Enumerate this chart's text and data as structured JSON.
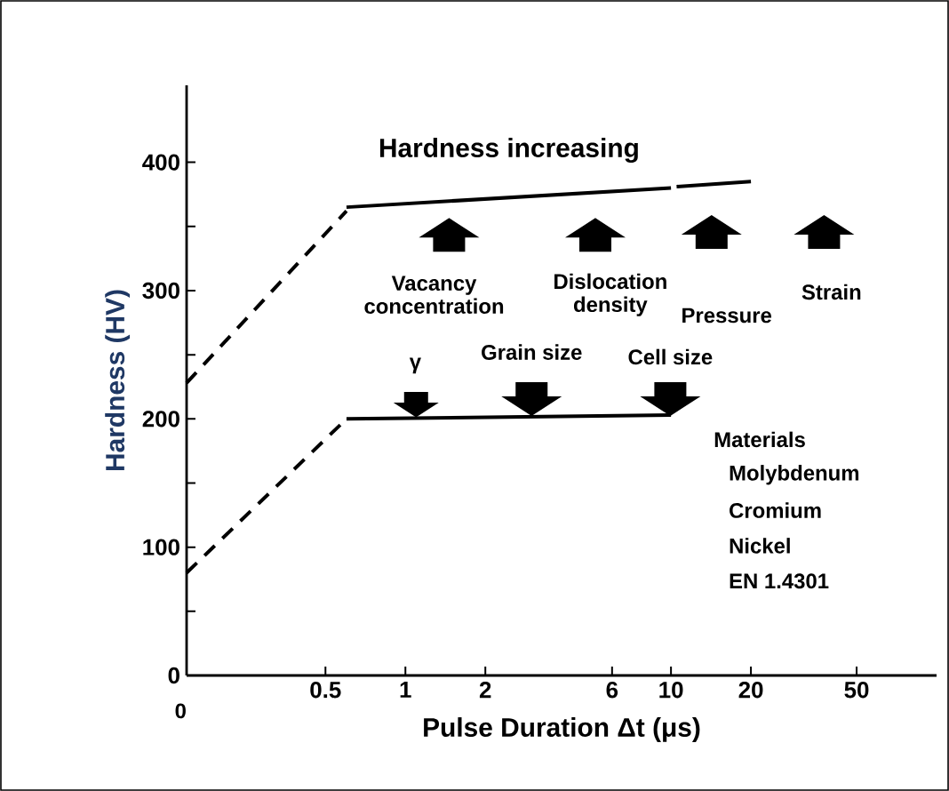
{
  "chart_data": {
    "type": "line",
    "title": "Hardness increasing",
    "xlabel": "Pulse Duration Δt (μs)",
    "ylabel": "Hardness (HV)",
    "log": "x",
    "xlim": [
      0.15,
      100
    ],
    "xticks": [
      0.5,
      1,
      2,
      6,
      10,
      20,
      50
    ],
    "ylim": [
      0,
      460
    ],
    "yticks": [
      0,
      {
        "value": 50,
        "label": null
      },
      100,
      {
        "value": 150,
        "label": null
      },
      200,
      {
        "value": 250,
        "label": null
      },
      300,
      {
        "value": 350,
        "label": null
      },
      400
    ],
    "annotations": [
      "Vacancy concentration",
      "Dislocation density",
      "Pressure",
      "Strain",
      "γ",
      "Grain size",
      "Cell size",
      "Materials",
      "Molybdenum",
      "Cromium",
      "Nickel",
      "EN 1.4301",
      "0"
    ],
    "marker": "none",
    "grid": false,
    "series": [
      {
        "x": [
          0.15,
          0.6
        ],
        "values": [
          228,
          362
        ],
        "color": "#000000",
        "line_style": "dashed"
      },
      {
        "x": [
          0.6,
          10
        ],
        "values": [
          365,
          380
        ],
        "color": "#000000",
        "line_style": "solid"
      },
      {
        "x": [
          10.5,
          20
        ],
        "values": [
          381,
          385
        ],
        "color": "#000000",
        "line_style": "solid"
      },
      {
        "x": [
          0.15,
          0.6
        ],
        "values": [
          80,
          200
        ],
        "color": "#000000",
        "line_style": "dashed"
      },
      {
        "x": [
          0.6,
          10
        ],
        "values": [
          200,
          203
        ],
        "color": "#000000",
        "line_style": "solid"
      }
    ]
  }
}
